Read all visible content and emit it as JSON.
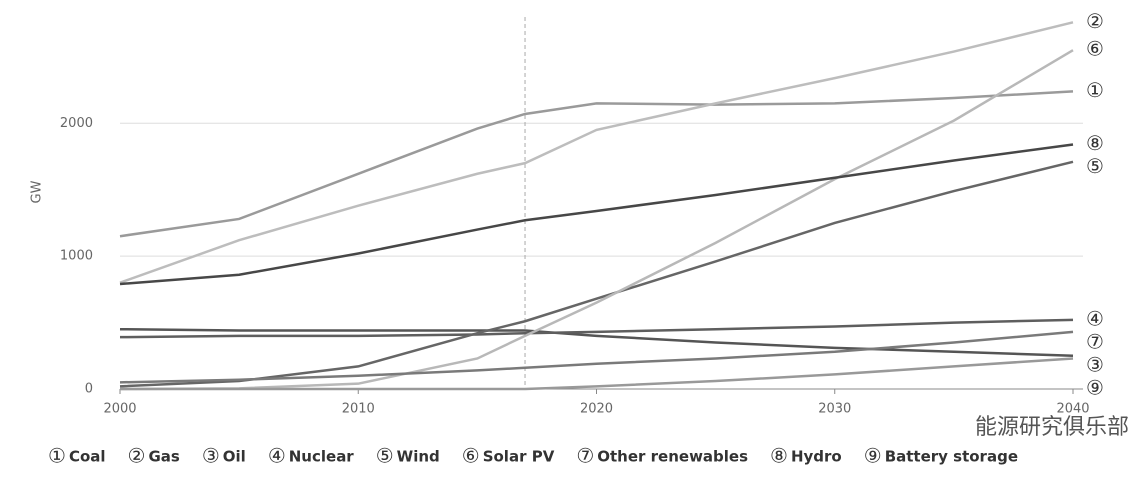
{
  "chart_data": {
    "type": "line",
    "y_label": "GW",
    "watermark": "能源研究俱乐部",
    "x": [
      2000,
      2005,
      2010,
      2015,
      2017,
      2020,
      2025,
      2030,
      2035,
      2040
    ],
    "xlim": [
      2000,
      2040
    ],
    "xticks": [
      2000,
      2010,
      2020,
      2030,
      2040
    ],
    "ylim": [
      0,
      2800
    ],
    "yticks": [
      0,
      1000,
      2000
    ],
    "grid": true,
    "reference_x": 2017,
    "series": [
      {
        "marker": "①",
        "name": "Coal",
        "color": "#9a9a9a",
        "values": [
          1150,
          1280,
          1620,
          1960,
          2070,
          2150,
          2140,
          2150,
          2190,
          2240
        ]
      },
      {
        "marker": "②",
        "name": "Gas",
        "color": "#bdbdbd",
        "values": [
          800,
          1120,
          1380,
          1620,
          1700,
          1950,
          2150,
          2340,
          2540,
          2760
        ]
      },
      {
        "marker": "③",
        "name": "Oil",
        "color": "#555555",
        "values": [
          450,
          440,
          440,
          440,
          440,
          400,
          350,
          310,
          280,
          250
        ]
      },
      {
        "marker": "④",
        "name": "Nuclear",
        "color": "#5e5e5e",
        "values": [
          390,
          400,
          400,
          410,
          420,
          430,
          450,
          470,
          500,
          520
        ]
      },
      {
        "marker": "⑤",
        "name": "Wind",
        "color": "#666666",
        "values": [
          20,
          60,
          170,
          420,
          510,
          680,
          960,
          1250,
          1490,
          1710
        ]
      },
      {
        "marker": "⑥",
        "name": "Solar PV",
        "color": "#b8b8b8",
        "values": [
          0,
          5,
          40,
          230,
          400,
          650,
          1100,
          1580,
          2020,
          2550
        ]
      },
      {
        "marker": "⑦",
        "name": "Other renewables",
        "color": "#7a7a7a",
        "values": [
          50,
          70,
          100,
          140,
          160,
          190,
          230,
          280,
          350,
          430
        ]
      },
      {
        "marker": "⑧",
        "name": "Hydro",
        "color": "#474747",
        "values": [
          790,
          860,
          1020,
          1200,
          1270,
          1340,
          1460,
          1590,
          1720,
          1840
        ]
      },
      {
        "marker": "⑨",
        "name": "Battery storage",
        "color": "#999999",
        "values": [
          0,
          0,
          0,
          0,
          0,
          20,
          60,
          110,
          170,
          230
        ]
      }
    ]
  }
}
